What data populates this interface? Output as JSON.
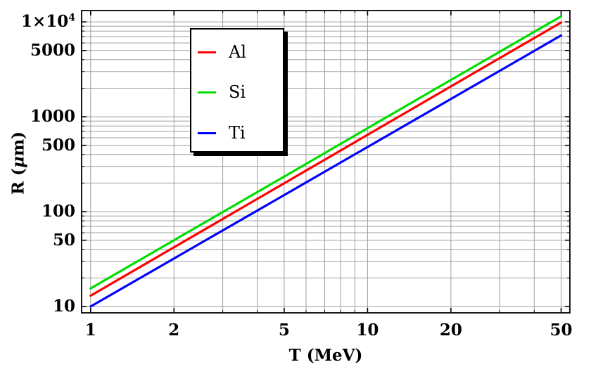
{
  "chart_data": {
    "type": "line",
    "title": "",
    "xlabel": "T (MeV)",
    "ylabel": "R (μm)",
    "ylabel_parts": {
      "prefix": "R (",
      "mu": "μ",
      "suffix": "m)"
    },
    "xscale": "log",
    "yscale": "log",
    "xlim": [
      0.928,
      53.8
    ],
    "ylim": [
      8.58,
      13170
    ],
    "grid": true,
    "grid_color": "#9e9e9e",
    "frame_color": "#000000",
    "background": "#ffffff",
    "legend": {
      "position": "upper-left",
      "border_color": "#000000",
      "shadow": true
    },
    "x_axis": {
      "major": [
        {
          "value": 1,
          "label": "1"
        },
        {
          "value": 2,
          "label": "2"
        },
        {
          "value": 5,
          "label": "5"
        },
        {
          "value": 10,
          "label": "10"
        },
        {
          "value": 20,
          "label": "20"
        },
        {
          "value": 50,
          "label": "50"
        }
      ],
      "minor": [
        3,
        4,
        6,
        7,
        8,
        9,
        30,
        40
      ]
    },
    "y_axis": {
      "major": [
        {
          "value": 10,
          "label": "10"
        },
        {
          "value": 50,
          "label": "50"
        },
        {
          "value": 100,
          "label": "100"
        },
        {
          "value": 500,
          "label": "500"
        },
        {
          "value": 1000,
          "label": "1000"
        },
        {
          "value": 5000,
          "label": "5000"
        },
        {
          "value": 10000,
          "label": "1×10^4"
        }
      ],
      "minor": [
        20,
        30,
        40,
        60,
        70,
        80,
        90,
        200,
        300,
        400,
        600,
        700,
        800,
        900,
        2000,
        3000,
        4000,
        6000,
        7000,
        8000,
        9000
      ]
    },
    "series": [
      {
        "name": "Al",
        "color": "#ff0000",
        "x": [
          1,
          2,
          5,
          10,
          20,
          50
        ],
        "y": [
          13,
          42.1,
          199,
          645,
          2088,
          9860
        ]
      },
      {
        "name": "Si",
        "color": "#00dd00",
        "x": [
          1,
          2,
          5,
          10,
          20,
          50
        ],
        "y": [
          15.5,
          50,
          234,
          757,
          2443,
          11450
        ]
      },
      {
        "name": "Ti",
        "color": "#0000ff",
        "x": [
          1,
          2,
          5,
          10,
          20,
          50
        ],
        "y": [
          10,
          32.1,
          149.5,
          480,
          1540,
          7200
        ]
      }
    ]
  }
}
